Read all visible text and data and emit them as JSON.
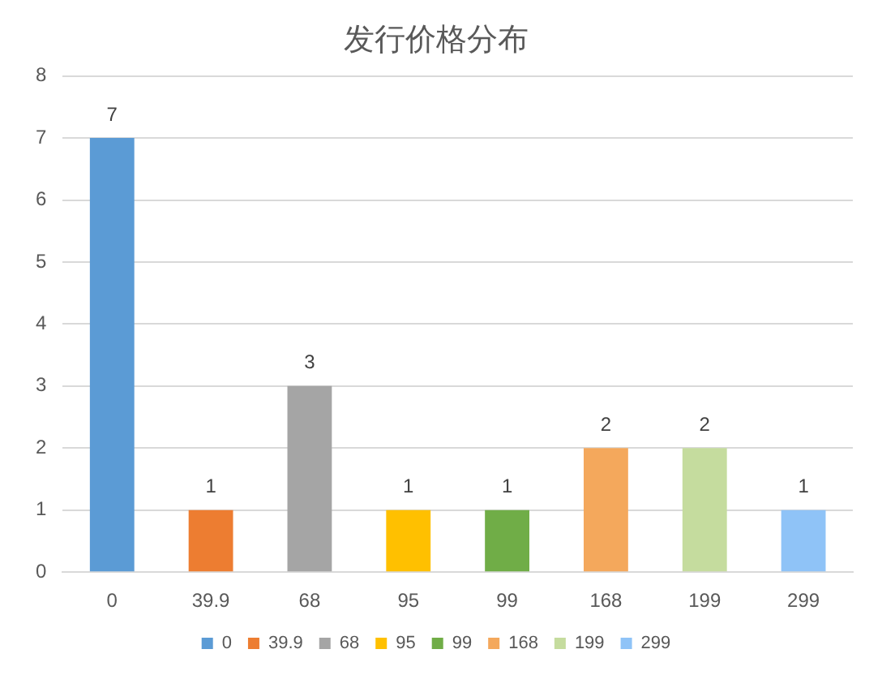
{
  "chart_data": {
    "type": "bar",
    "title": "发行价格分布",
    "categories": [
      "0",
      "39.9",
      "68",
      "95",
      "99",
      "168",
      "199",
      "299"
    ],
    "series": [
      {
        "name": "0",
        "color": "#5b9bd5",
        "values": [
          7,
          null,
          null,
          null,
          null,
          null,
          null,
          null
        ]
      },
      {
        "name": "39.9",
        "color": "#ed7d31",
        "values": [
          null,
          1,
          null,
          null,
          null,
          null,
          null,
          null
        ]
      },
      {
        "name": "68",
        "color": "#a5a5a5",
        "values": [
          null,
          null,
          3,
          null,
          null,
          null,
          null,
          null
        ]
      },
      {
        "name": "95",
        "color": "#ffc000",
        "values": [
          null,
          null,
          null,
          1,
          null,
          null,
          null,
          null
        ]
      },
      {
        "name": "99",
        "color": "#70ad47",
        "values": [
          null,
          null,
          null,
          null,
          1,
          null,
          null,
          null
        ]
      },
      {
        "name": "168",
        "color": "#f4a85c",
        "values": [
          null,
          null,
          null,
          null,
          null,
          2,
          null,
          null
        ]
      },
      {
        "name": "199",
        "color": "#c5dc9e",
        "values": [
          null,
          null,
          null,
          null,
          null,
          null,
          2,
          null
        ]
      },
      {
        "name": "299",
        "color": "#8fc3f7",
        "values": [
          null,
          null,
          null,
          null,
          null,
          null,
          null,
          1
        ]
      }
    ],
    "ylim": [
      0,
      8
    ],
    "yticks": [
      0,
      1,
      2,
      3,
      4,
      5,
      6,
      7,
      8
    ],
    "grid": "y",
    "legend": "bottom",
    "data_labels": true
  }
}
